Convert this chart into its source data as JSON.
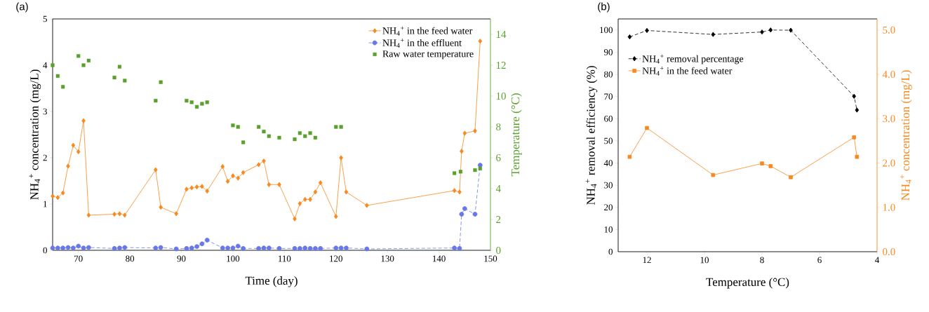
{
  "chart_data": [
    {
      "type": "line",
      "title": "(a)",
      "xlabel": "Time (day)",
      "ylabel": "NH$_{4}$$^{+}$ concentration (mg/L)",
      "y2label": "Temperature (°C)",
      "xlim": [
        65,
        150
      ],
      "xticks": [
        70,
        80,
        90,
        100,
        110,
        120,
        130,
        140,
        150
      ],
      "ylim": [
        0,
        5
      ],
      "yticks": [
        0,
        1,
        2,
        3,
        4,
        5
      ],
      "y2lim": [
        0,
        15
      ],
      "y2ticks": [
        0,
        2,
        4,
        6,
        8,
        10,
        12,
        14
      ],
      "legend": "top right",
      "grid": false,
      "series": [
        {
          "name": "NH$_{4}$$^{+}$ in the feed water",
          "type": "line",
          "color": "#f7891f",
          "marker": "diamond",
          "line_style": "solid",
          "x": [
            65,
            66,
            67,
            68,
            69,
            70,
            71,
            72,
            77,
            78,
            79,
            85,
            86,
            89,
            91,
            92,
            93,
            94,
            95,
            98,
            99,
            100,
            101,
            102,
            105,
            106,
            107,
            109,
            112,
            113,
            114,
            115,
            116,
            117,
            120,
            121,
            122,
            126,
            143,
            144,
            144.4,
            145,
            147,
            148
          ],
          "values": [
            1.17,
            1.14,
            1.24,
            1.82,
            2.27,
            2.13,
            2.8,
            0.76,
            0.78,
            0.79,
            0.76,
            1.74,
            0.93,
            0.79,
            1.32,
            1.35,
            1.37,
            1.38,
            1.28,
            1.81,
            1.49,
            1.61,
            1.56,
            1.68,
            1.85,
            1.93,
            1.42,
            1.42,
            0.68,
            1.01,
            1.1,
            1.1,
            1.26,
            1.46,
            0.73,
            2.0,
            1.26,
            0.97,
            1.29,
            1.26,
            2.14,
            2.53,
            2.58,
            4.52
          ]
        },
        {
          "name": "NH$_{4}$$^{+}$ in the effluent",
          "type": "line",
          "color": "#6878e8",
          "marker": "circle",
          "line_style": "dashed",
          "x": [
            65,
            66,
            67,
            68,
            69,
            70,
            71,
            72,
            77,
            78,
            79,
            85,
            86,
            89,
            91,
            92,
            93,
            94,
            95,
            98,
            99,
            100,
            101,
            102,
            105,
            106,
            107,
            109,
            112,
            113,
            114,
            115,
            116,
            117,
            120,
            121,
            122,
            126,
            143,
            144,
            144.4,
            145,
            147,
            148
          ],
          "values": [
            0.05,
            0.05,
            0.05,
            0.06,
            0.05,
            0.09,
            0.05,
            0.06,
            0.04,
            0.05,
            0.06,
            0.05,
            0.06,
            0.03,
            0.04,
            0.05,
            0.08,
            0.14,
            0.22,
            0.05,
            0.05,
            0.05,
            0.09,
            0.04,
            0.04,
            0.05,
            0.05,
            0.04,
            0.04,
            0.04,
            0.05,
            0.04,
            0.04,
            0.04,
            0.05,
            0.05,
            0.05,
            0.03,
            0.05,
            0.04,
            0.78,
            0.9,
            0.78,
            1.84
          ]
        },
        {
          "name": "Raw water temperature",
          "type": "scatter",
          "axis": "y2",
          "color": "#5aa02c",
          "marker": "square",
          "x": [
            65,
            66,
            67,
            70,
            71,
            72,
            77,
            78,
            79,
            85,
            86,
            91,
            92,
            93,
            94,
            95,
            100,
            101,
            102,
            105,
            106,
            107,
            109,
            112,
            113,
            114,
            115,
            116,
            120,
            121,
            143,
            144.2,
            147,
            148
          ],
          "values": [
            12.0,
            11.3,
            10.6,
            12.6,
            12.0,
            12.3,
            11.2,
            11.9,
            11.0,
            9.7,
            10.9,
            9.7,
            9.6,
            9.3,
            9.5,
            9.6,
            8.1,
            8.0,
            7.0,
            8.0,
            7.7,
            7.4,
            7.3,
            7.2,
            7.6,
            7.4,
            7.6,
            7.3,
            8.0,
            8.0,
            5.0,
            5.1,
            5.2,
            5.3
          ]
        }
      ]
    },
    {
      "type": "line",
      "title": "(b)",
      "xlabel": "Temperature (°C)",
      "ylabel": "NH$_{4}$$^{+}$ removal efficiency (%)",
      "y2label": "NH$_{4}$$^{+}$ concentration (mg/L)",
      "xlim": [
        13,
        4
      ],
      "xticks": [
        12,
        10,
        8,
        6,
        4
      ],
      "ylim": [
        0,
        105
      ],
      "yticks": [
        0,
        10,
        20,
        30,
        40,
        50,
        60,
        70,
        80,
        90,
        100
      ],
      "y2lim": [
        0,
        5.25
      ],
      "y2ticks": [
        {
          "value": 0,
          "label": "0.0"
        },
        {
          "value": 1,
          "label": "1.0"
        },
        {
          "value": 2,
          "label": "2.0"
        },
        {
          "value": 3,
          "label": "3.0"
        },
        {
          "value": 4,
          "label": "4.0"
        },
        {
          "value": 5,
          "label": "5.0"
        }
      ],
      "legend": "top left",
      "grid": false,
      "series": [
        {
          "name": "NH$_{4}$$^{+}$ removal percentage",
          "type": "line",
          "color": "#000000",
          "marker": "diamond",
          "line_style": "dashed",
          "x": [
            12.6,
            12.0,
            9.7,
            8.0,
            7.7,
            7.0,
            4.8,
            4.7
          ],
          "values": [
            96.9,
            99.8,
            98.0,
            99.1,
            100.0,
            99.9,
            70.1,
            63.9
          ]
        },
        {
          "name": "NH$_{4}$$^{+}$ in the feed water",
          "type": "line",
          "axis": "y2",
          "color": "#f7891f",
          "marker": "square",
          "line_style": "solid",
          "x": [
            12.6,
            12.0,
            9.7,
            8.0,
            7.7,
            7.0,
            4.8,
            4.7
          ],
          "values": [
            2.14,
            2.79,
            1.73,
            1.99,
            1.93,
            1.68,
            2.58,
            2.14
          ]
        }
      ]
    }
  ]
}
